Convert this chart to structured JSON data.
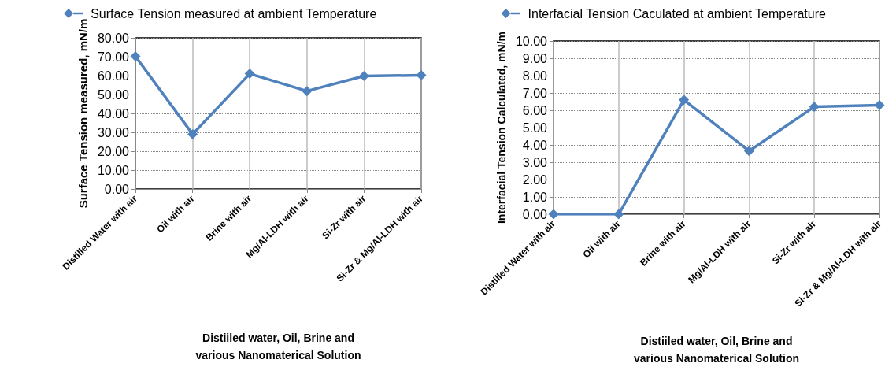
{
  "chart_data": [
    {
      "type": "line",
      "categories": [
        "Distilled Water with air",
        "Oil with air",
        "Brine with air",
        "Mg/Al-LDH with air",
        "Si-Zr with air",
        "Si-Zr & Mg/Al-LDH with air"
      ],
      "series": [
        {
          "name": "Surface Tension measured at ambient Temperature",
          "color": "#4f81bd",
          "values": [
            70.2,
            29.0,
            61.0,
            51.8,
            59.8,
            60.2
          ]
        }
      ],
      "xlabel": "Distiiled water, Oil, Brine and various Nanomaterical Solution",
      "ylabel": "Surface Tension measured, mN/m",
      "ylim": [
        0,
        80
      ],
      "yticks": [
        {
          "value": 0,
          "label": "0.00"
        },
        {
          "value": 10,
          "label": "10.00"
        },
        {
          "value": 20,
          "label": "20.00"
        },
        {
          "value": 30,
          "label": "30.00"
        },
        {
          "value": 40,
          "label": "40.00"
        },
        {
          "value": 50,
          "label": "50.00"
        },
        {
          "value": 60,
          "label": "60.00"
        },
        {
          "value": 70,
          "label": "70.00"
        },
        {
          "value": 80,
          "label": "80.00"
        }
      ],
      "grid": true,
      "legend": "top",
      "marker": "diamond",
      "line_style": "solid"
    },
    {
      "type": "line",
      "categories": [
        "Distilled Water with air",
        "Oil with air",
        "Brine with air",
        "Mg/Al-LDH with air",
        "Si-Zr with air",
        "Si-Zr & Mg/Al-LDH with air"
      ],
      "series": [
        {
          "name": "Interfacial Tension Caculated at ambient Temperature",
          "color": "#4f81bd",
          "values": [
            0,
            0,
            6.6,
            3.65,
            6.2,
            6.3
          ]
        }
      ],
      "xlabel": "Distiiled water, Oil, Brine and various Nanomaterical Solution",
      "ylabel": "Interfacial Tension Calculated, mN/m",
      "ylim": [
        0,
        10
      ],
      "yticks": [
        {
          "value": 0,
          "label": "0.00"
        },
        {
          "value": 1,
          "label": "1.00"
        },
        {
          "value": 2,
          "label": "2.00"
        },
        {
          "value": 3,
          "label": "3.00"
        },
        {
          "value": 4,
          "label": "4.00"
        },
        {
          "value": 5,
          "label": "5.00"
        },
        {
          "value": 6,
          "label": "6.00"
        },
        {
          "value": 7,
          "label": "7.00"
        },
        {
          "value": 8,
          "label": "8.00"
        },
        {
          "value": 9,
          "label": "9.00"
        },
        {
          "value": 10,
          "label": "10.00"
        }
      ],
      "grid": true,
      "legend": "top",
      "marker": "diamond",
      "line_style": "solid"
    }
  ]
}
